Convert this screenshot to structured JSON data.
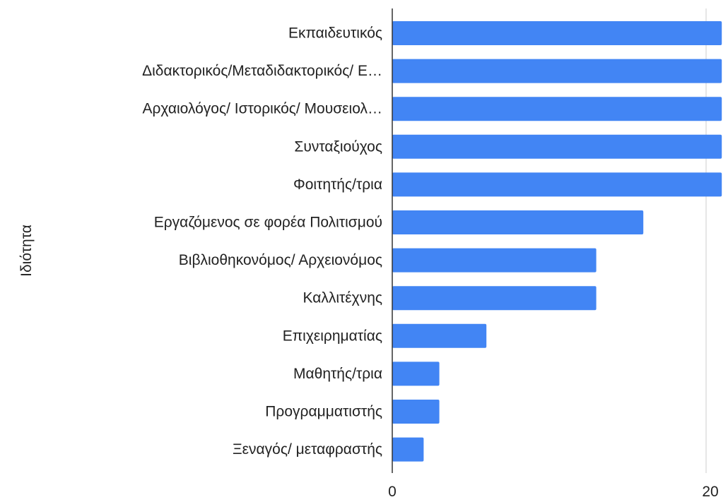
{
  "chart_data": {
    "type": "bar",
    "orientation": "horizontal",
    "ylabel": "Ιδιότητα",
    "categories": [
      "Εκπαιδευτικός",
      "Διδακτορικός/Μεταδιδακτορικός/ Ε…",
      "Αρχαιολόγος/ Ιστορικός/ Μουσειολ…",
      "Συνταξιούχος",
      "Φοιτητής/τρια",
      "Εργαζόμενος σε φορέα Πολιτισμού",
      "Βιβλιοθηκονόμος/ Αρχειονόμος",
      "Καλλιτέχνης",
      "Επιχειρηματίας",
      "Μαθητής/τρια",
      "Προγραμματιστής",
      "Ξεναγός/ μεταφραστής"
    ],
    "values": [
      21,
      21,
      21,
      21,
      21,
      16,
      13,
      13,
      6,
      3,
      3,
      2
    ],
    "x_ticks": [
      "0",
      "20"
    ],
    "xlim": [
      0,
      20.6
    ],
    "grid": true,
    "bar_color": "#4285f4"
  }
}
